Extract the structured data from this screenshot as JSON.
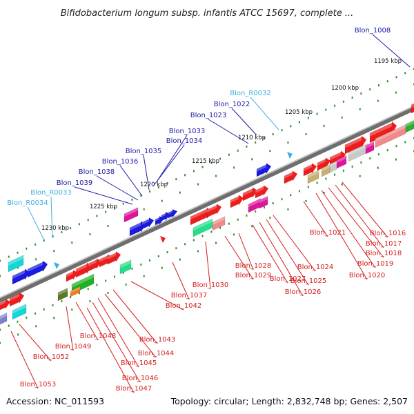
{
  "header": {
    "title": "Bifidobacterium longum subsp. infantis ATCC 15697, complete ..."
  },
  "footer": {
    "accession": "Accession: NC_011593",
    "summary": "Topology: circular; Length: 2,832,748 bp; Genes: 2,507"
  },
  "colors": {
    "forward_gene_label": "#1a1aa8",
    "rna_label": "#3ab0e0",
    "reverse_gene_label": "#d41c1c",
    "backbone": "#888888",
    "dots": "#2c8f2c"
  },
  "ticks": [
    "1195 kbp",
    "1200 kbp",
    "1205 kbp",
    "1210 kbp",
    "1215 kbp",
    "1220 kbp",
    "1225 kbp",
    "1230 kbp"
  ],
  "forward_labels": [
    "Blon_1008",
    "Blon_1022",
    "Blon_1023",
    "Blon_1033",
    "Blon_1034",
    "Blon_1035",
    "Blon_1036",
    "Blon_1038",
    "Blon_1039"
  ],
  "rna_labels": [
    "Blon_R0032",
    "Blon_R0033",
    "Blon_R0034"
  ],
  "reverse_labels": [
    "Blon_1016",
    "Blon_1017",
    "Blon_1018",
    "Blon_1019",
    "Blon_1020",
    "Blon_1021",
    "Blon_1024",
    "Blon_1025",
    "Blon_1026",
    "Blon_1027",
    "Blon_1028",
    "Blon_1029",
    "Blon_1030",
    "Blon_1037",
    "Blon_1042",
    "Blon_1043",
    "Blon_1044",
    "Blon_1045",
    "Blon_1046",
    "Blon_1047",
    "Blon_1048",
    "Blon_1049",
    "Blon_1052",
    "Blon_1053"
  ]
}
